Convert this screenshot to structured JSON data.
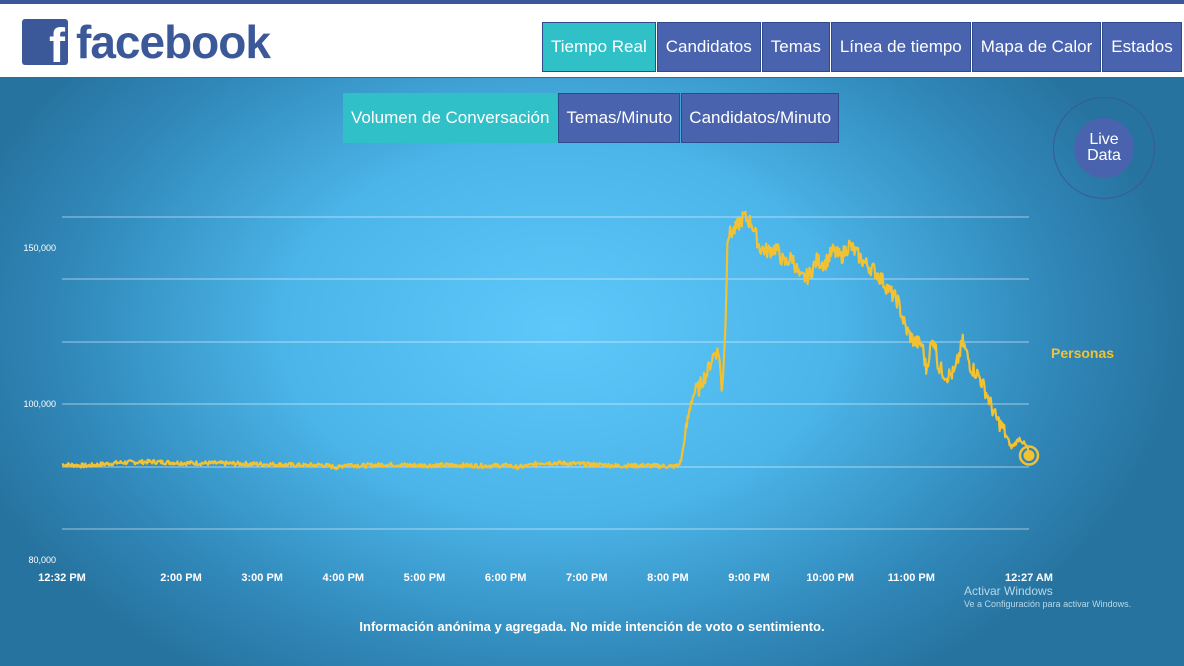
{
  "brand": {
    "name": "facebook",
    "icon_letter": "f"
  },
  "nav": {
    "items": [
      {
        "label": "Tiempo Real",
        "active": true
      },
      {
        "label": "Candidatos",
        "active": false
      },
      {
        "label": "Temas",
        "active": false
      },
      {
        "label": "Línea de tiempo",
        "active": false
      },
      {
        "label": "Mapa de Calor",
        "active": false
      },
      {
        "label": "Estados",
        "active": false
      }
    ]
  },
  "subnav": {
    "items": [
      {
        "label": "Volumen de Conversación",
        "active": true
      },
      {
        "label": "Temas/Minuto",
        "active": false
      },
      {
        "label": "Candidatos/Minuto",
        "active": false
      }
    ]
  },
  "live_badge": {
    "line1": "Live",
    "line2": "Data"
  },
  "colors": {
    "brand": "#3b5998",
    "active_tab": "#2fc0c8",
    "line": "#f2c233"
  },
  "chart_data": {
    "type": "line",
    "series": [
      {
        "name": "Personas"
      }
    ],
    "y_ticks": [
      "150,000",
      "100,000",
      "80,000"
    ],
    "x_tick_labels": [
      "12:32 PM",
      "2:00 PM",
      "3:00 PM",
      "4:00 PM",
      "5:00 PM",
      "6:00 PM",
      "7:00 PM",
      "8:00 PM",
      "9:00 PM",
      "10:00 PM",
      "11:00 PM",
      "12:27 AM"
    ],
    "x_hours": [
      0,
      1.4667,
      2.4667,
      3.4667,
      4.4667,
      5.4667,
      6.4667,
      7.4667,
      8.4667,
      9.4667,
      10.4667,
      11.9167
    ],
    "x": [
      0,
      0.3,
      0.7,
      1.1,
      1.5,
      1.9,
      2.3,
      2.7,
      3.0,
      3.2,
      3.4,
      3.5,
      3.7,
      4.0,
      4.4,
      4.8,
      5.2,
      5.5,
      5.6,
      5.75,
      5.9,
      6.2,
      6.6,
      6.9,
      7.2,
      7.4,
      7.55,
      7.6,
      7.63,
      7.68,
      7.72,
      7.75,
      7.8,
      7.85,
      7.9,
      7.95,
      8.0,
      8.05,
      8.1,
      8.13,
      8.15,
      8.18,
      8.2,
      8.3,
      8.4,
      8.5,
      8.6,
      8.7,
      8.8,
      8.9,
      9.0,
      9.1,
      9.2,
      9.3,
      9.4,
      9.5,
      9.6,
      9.7,
      9.8,
      9.9,
      10.0,
      10.1,
      10.2,
      10.3,
      10.4,
      10.5,
      10.6,
      10.65,
      10.7,
      10.75,
      10.8,
      10.9,
      11.0,
      11.1,
      11.2,
      11.3,
      11.4,
      11.5,
      11.6,
      11.7,
      11.8,
      11.9,
      11.9167
    ],
    "values": [
      80600,
      80200,
      81200,
      81500,
      81100,
      81000,
      80800,
      80600,
      80300,
      80500,
      79600,
      80700,
      80200,
      80600,
      80300,
      80400,
      80200,
      80300,
      79700,
      80200,
      81200,
      81000,
      80500,
      80200,
      80300,
      80100,
      80000,
      80500,
      82000,
      90000,
      96000,
      101000,
      104000,
      105000,
      108000,
      110000,
      114000,
      117000,
      116000,
      104000,
      112000,
      128000,
      154000,
      156000,
      160000,
      158000,
      150000,
      149000,
      150000,
      145000,
      147000,
      140000,
      141000,
      146000,
      145000,
      149000,
      147000,
      151000,
      148000,
      145000,
      143000,
      140000,
      136000,
      133000,
      124000,
      120000,
      119000,
      111000,
      118000,
      121000,
      112000,
      109000,
      110000,
      120000,
      112000,
      109000,
      103000,
      96000,
      92000,
      86000,
      89000,
      86000,
      83500
    ]
  },
  "footnote": "Información anónima y agregada. No mide intención de voto o sentimiento.",
  "watermark": {
    "line1": "Activar Windows",
    "line2": "Ve a Configuración para activar Windows."
  }
}
